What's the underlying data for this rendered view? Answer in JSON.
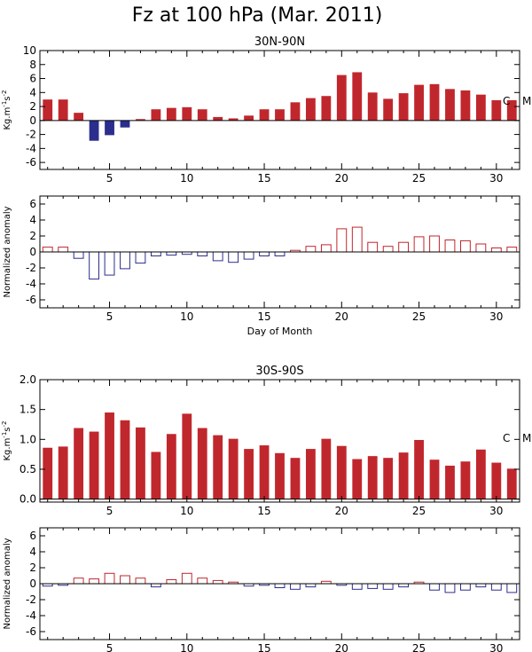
{
  "page_title": "Fz at 100 hPa (Mar. 2011)",
  "colors": {
    "positive": "#c0272d",
    "negative": "#2b2e8c",
    "axis": "#000000"
  },
  "chart_data": [
    {
      "type": "bar",
      "subtitle": "30N-90N",
      "ylabel_base": "Kg.m",
      "ylabel_exp1": "-1",
      "ylabel_mid": "s",
      "ylabel_exp2": "-2",
      "xlabel": "",
      "xlim": [
        0.5,
        31.5
      ],
      "ylim": [
        -7,
        10
      ],
      "yticks": [
        "-6",
        "-4",
        "-2",
        "0",
        "2",
        "4",
        "6",
        "8",
        "10"
      ],
      "xticks": [
        "5",
        "10",
        "15",
        "20",
        "25",
        "30"
      ],
      "filled": true,
      "x": [
        1,
        2,
        3,
        4,
        5,
        6,
        7,
        8,
        9,
        10,
        11,
        12,
        13,
        14,
        15,
        16,
        17,
        18,
        19,
        20,
        21,
        22,
        23,
        24,
        25,
        26,
        27,
        28,
        29,
        30,
        31
      ],
      "values": [
        3.0,
        3.0,
        1.1,
        -2.9,
        -2.1,
        -1.0,
        0.2,
        1.6,
        1.8,
        1.9,
        1.6,
        0.5,
        0.3,
        0.7,
        1.6,
        1.6,
        2.6,
        3.2,
        3.5,
        6.5,
        6.9,
        4.0,
        3.1,
        3.9,
        5.1,
        5.2,
        4.5,
        4.3,
        3.7,
        2.9,
        2.9
      ],
      "marker_labels": [
        "C",
        "M"
      ]
    },
    {
      "type": "bar",
      "subtitle": "",
      "ylabel": "Normalized anomaly",
      "xlabel": "Day of Month",
      "xlim": [
        0.5,
        31.5
      ],
      "ylim": [
        -7,
        7
      ],
      "yticks": [
        "-6",
        "-4",
        "-2",
        "0",
        "2",
        "4",
        "6"
      ],
      "xticks": [
        "5",
        "10",
        "15",
        "20",
        "25",
        "30"
      ],
      "filled": false,
      "x": [
        1,
        2,
        3,
        4,
        5,
        6,
        7,
        8,
        9,
        10,
        11,
        12,
        13,
        14,
        15,
        16,
        17,
        18,
        19,
        20,
        21,
        22,
        23,
        24,
        25,
        26,
        27,
        28,
        29,
        30,
        31
      ],
      "values": [
        0.6,
        0.6,
        -0.8,
        -3.4,
        -2.9,
        -2.1,
        -1.4,
        -0.5,
        -0.4,
        -0.3,
        -0.5,
        -1.1,
        -1.3,
        -0.9,
        -0.5,
        -0.5,
        0.2,
        0.7,
        0.9,
        2.9,
        3.1,
        1.2,
        0.7,
        1.2,
        1.9,
        2.0,
        1.5,
        1.4,
        1.0,
        0.5,
        0.6
      ]
    },
    {
      "type": "bar",
      "subtitle": "30S-90S",
      "ylabel_base": "Kg.m",
      "ylabel_exp1": "-1",
      "ylabel_mid": "s",
      "ylabel_exp2": "-2",
      "xlabel": "",
      "xlim": [
        0.5,
        31.5
      ],
      "ylim": [
        -0.05,
        2.0
      ],
      "yticks": [
        "0.0",
        "0.5",
        "1.0",
        "1.5",
        "2.0"
      ],
      "xticks": [
        "5",
        "10",
        "15",
        "20",
        "25",
        "30"
      ],
      "filled": true,
      "x": [
        1,
        2,
        3,
        4,
        5,
        6,
        7,
        8,
        9,
        10,
        11,
        12,
        13,
        14,
        15,
        16,
        17,
        18,
        19,
        20,
        21,
        22,
        23,
        24,
        25,
        26,
        27,
        28,
        29,
        30,
        31
      ],
      "values": [
        0.86,
        0.88,
        1.19,
        1.13,
        1.45,
        1.32,
        1.2,
        0.79,
        1.09,
        1.43,
        1.19,
        1.07,
        1.01,
        0.84,
        0.9,
        0.77,
        0.69,
        0.84,
        1.01,
        0.89,
        0.67,
        0.72,
        0.69,
        0.78,
        0.99,
        0.66,
        0.56,
        0.63,
        0.83,
        0.61,
        0.51
      ],
      "marker_labels": [
        "C",
        "M"
      ]
    },
    {
      "type": "bar",
      "subtitle": "",
      "ylabel": "Normalized anomaly",
      "xlabel": "Day of Month",
      "xlim": [
        0.5,
        31.5
      ],
      "ylim": [
        -7,
        7
      ],
      "yticks": [
        "-6",
        "-4",
        "-2",
        "0",
        "2",
        "4",
        "6"
      ],
      "xticks": [
        "5",
        "10",
        "15",
        "20",
        "25",
        "30"
      ],
      "filled": false,
      "x": [
        1,
        2,
        3,
        4,
        5,
        6,
        7,
        8,
        9,
        10,
        11,
        12,
        13,
        14,
        15,
        16,
        17,
        18,
        19,
        20,
        21,
        22,
        23,
        24,
        25,
        26,
        27,
        28,
        29,
        30,
        31
      ],
      "values": [
        -0.3,
        -0.2,
        0.7,
        0.6,
        1.3,
        1.0,
        0.7,
        -0.4,
        0.5,
        1.3,
        0.7,
        0.4,
        0.2,
        -0.3,
        -0.2,
        -0.5,
        -0.7,
        -0.4,
        0.3,
        -0.2,
        -0.7,
        -0.6,
        -0.7,
        -0.4,
        0.2,
        -0.8,
        -1.1,
        -0.8,
        -0.4,
        -0.8,
        -1.1
      ]
    }
  ]
}
